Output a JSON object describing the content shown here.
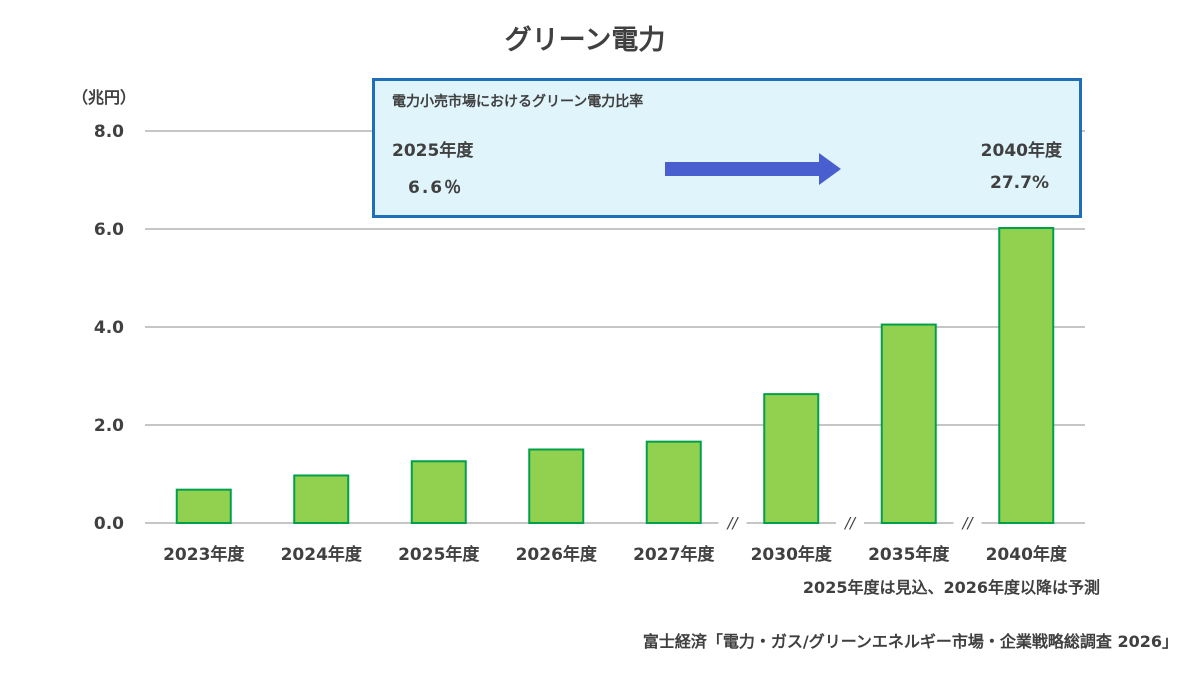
{
  "title": "グリーン電力",
  "unit": "（兆円）",
  "info_box": {
    "title": "電力小売市場におけるグリーン電力比率",
    "from_year": "2025年度",
    "from_value": "6.6％",
    "to_year": "2040年度",
    "to_value": "27.7%"
  },
  "note": "2025年度は見込、2026年度以降は予測",
  "source": "富士経済「電力・ガス/グリーンエネルギー市場・企業戦略総調査 2026」",
  "colors": {
    "bar_fill": "#92d050",
    "bar_stroke": "#00a04a",
    "arrow": "#4a5fcf",
    "box_border": "#1e6fb8",
    "box_fill": "#e0f4fb"
  },
  "chart_data": {
    "type": "bar",
    "title": "グリーン電力",
    "ylabel": "（兆円）",
    "xlabel": "",
    "ylim": [
      0,
      8
    ],
    "yticks": [
      "0.0",
      "2.0",
      "4.0",
      "6.0",
      "8.0"
    ],
    "grid": true,
    "categories": [
      "2023年度",
      "2024年度",
      "2025年度",
      "2026年度",
      "2027年度",
      "2030年度",
      "2035年度",
      "2040年度"
    ],
    "values": [
      0.68,
      0.97,
      1.26,
      1.5,
      1.66,
      2.63,
      4.05,
      6.02
    ],
    "axis_breaks_after": [
      "2027年度",
      "2030年度",
      "2035年度"
    ],
    "break_symbol": "//"
  }
}
